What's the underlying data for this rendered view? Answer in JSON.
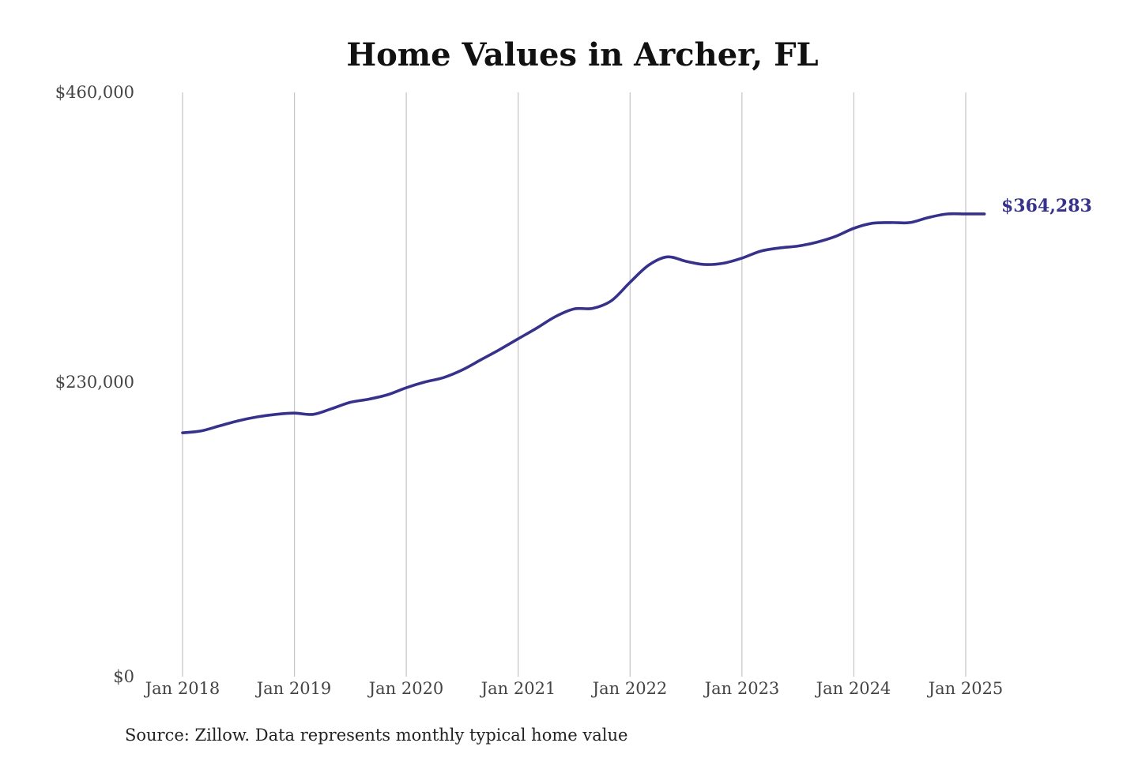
{
  "chart_data": {
    "type": "line",
    "title": "Home Values in Archer, FL",
    "source": "Source: Zillow. Data represents monthly typical home value",
    "x_ticks": [
      "Jan 2018",
      "Jan 2019",
      "Jan 2020",
      "Jan 2021",
      "Jan 2022",
      "Jan 2023",
      "Jan 2024",
      "Jan 2025"
    ],
    "y_ticks": [
      "$0",
      "$230,000",
      "$460,000"
    ],
    "ylim": [
      0,
      460000
    ],
    "xlim": [
      "2018-01",
      "2025-03"
    ],
    "grid": "vertical",
    "end_label": "$364,283",
    "series": [
      {
        "color": "#36318a",
        "x": [
          "2018-01",
          "2018-03",
          "2018-05",
          "2018-07",
          "2018-09",
          "2018-11",
          "2019-01",
          "2019-03",
          "2019-05",
          "2019-07",
          "2019-09",
          "2019-11",
          "2020-01",
          "2020-03",
          "2020-05",
          "2020-07",
          "2020-09",
          "2020-11",
          "2021-01",
          "2021-03",
          "2021-05",
          "2021-07",
          "2021-09",
          "2021-11",
          "2022-01",
          "2022-03",
          "2022-05",
          "2022-07",
          "2022-09",
          "2022-11",
          "2023-01",
          "2023-03",
          "2023-05",
          "2023-07",
          "2023-09",
          "2023-11",
          "2024-01",
          "2024-03",
          "2024-05",
          "2024-07",
          "2024-09",
          "2024-11",
          "2025-01",
          "2025-03"
        ],
        "values": [
          192000,
          193500,
          197500,
          201500,
          204500,
          206500,
          207500,
          206500,
          211000,
          216000,
          218500,
          222000,
          227500,
          232000,
          235500,
          241500,
          249500,
          257500,
          266000,
          274500,
          283500,
          289500,
          290000,
          296000,
          310500,
          324000,
          330500,
          327000,
          324500,
          325500,
          329500,
          335000,
          337500,
          339000,
          342000,
          346500,
          353000,
          357000,
          357500,
          357500,
          361500,
          364283,
          364283,
          364283
        ]
      }
    ]
  }
}
